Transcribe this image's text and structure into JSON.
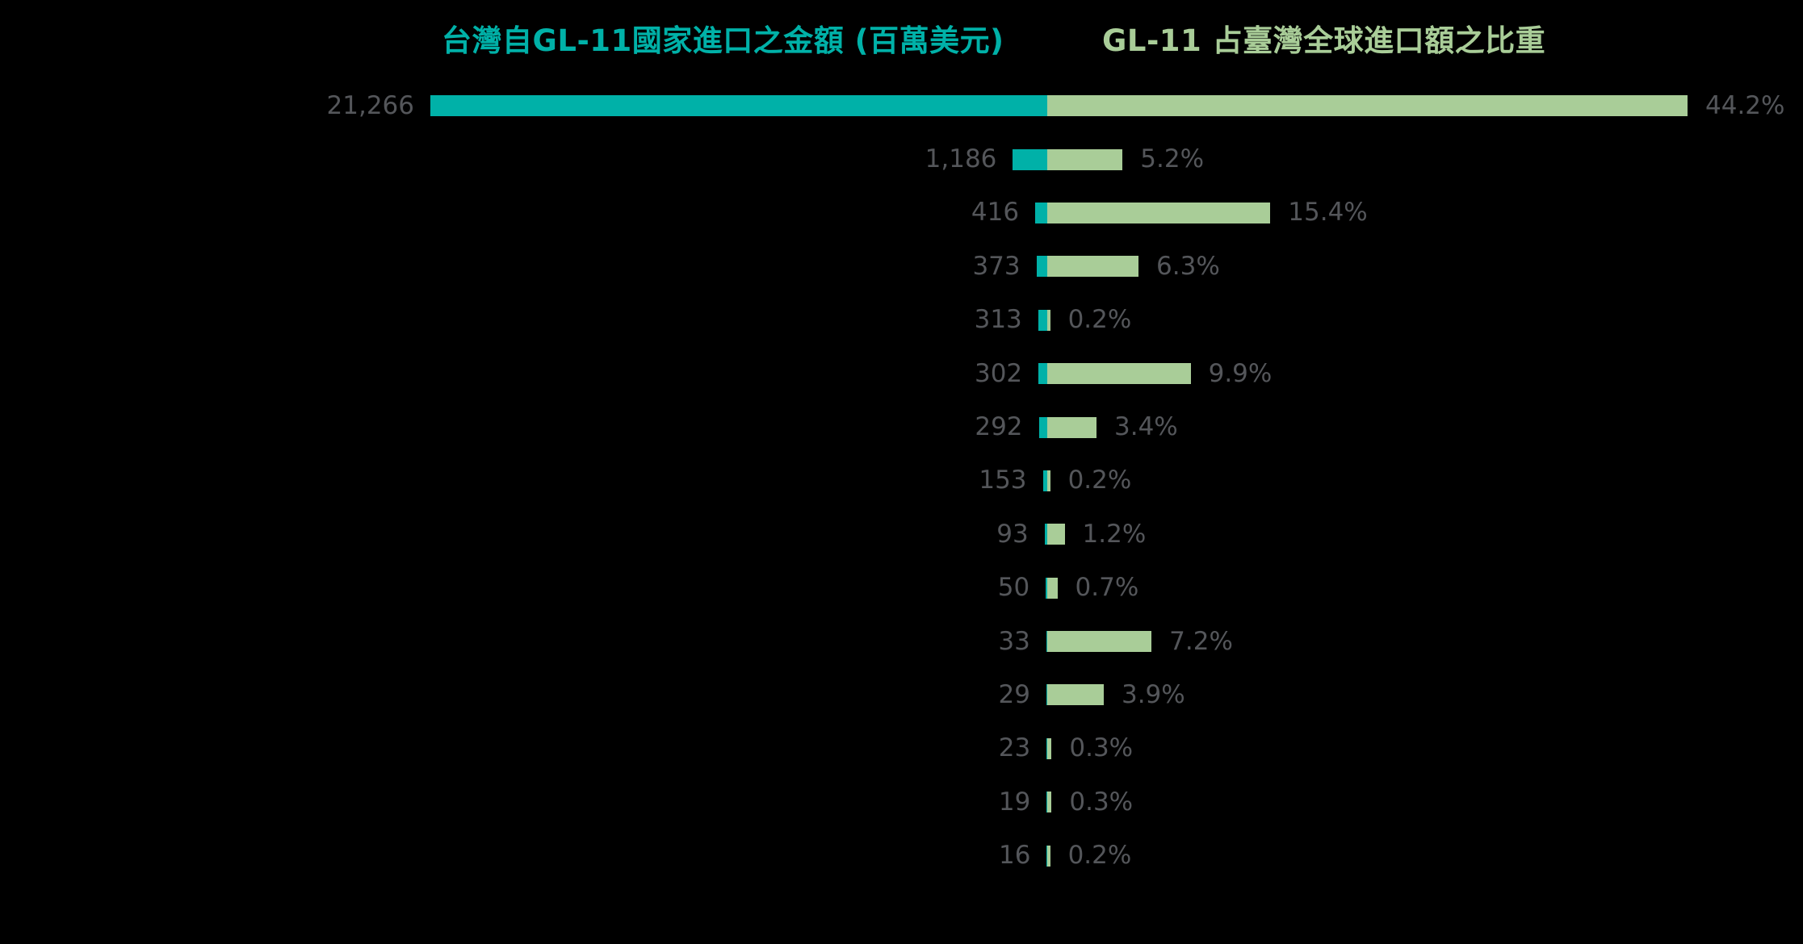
{
  "titles": {
    "left": "台灣自GL-11國家進口之金額 (百萬美元)",
    "right": "GL-11 占臺灣全球進口額之比重"
  },
  "colors": {
    "teal": "#00b1a8",
    "green": "#a9cd98",
    "label_gray": "#54565a",
    "background": "#000000"
  },
  "chart_data": {
    "type": "bar",
    "orientation": "horizontal-diverging",
    "title_left": "台灣自GL-11國家進口之金額 (百萬美元)",
    "title_right": "GL-11 占臺灣全球進口額之比重",
    "legend_position": "top-titles",
    "grid": false,
    "axis_labels_visible": false,
    "series": [
      {
        "name": "台灣自GL-11國家進口之金額 (百萬美元)",
        "direction": "left",
        "color": "#00b1a8",
        "unit": "百萬美元",
        "values": [
          21266,
          1186,
          416,
          373,
          313,
          302,
          292,
          153,
          93,
          50,
          33,
          29,
          23,
          19,
          16
        ],
        "value_labels": [
          "21,266",
          "1,186",
          "416",
          "373",
          "313",
          "302",
          "292",
          "153",
          "93",
          "50",
          "33",
          "29",
          "23",
          "19",
          "16"
        ],
        "max_value": 21266
      },
      {
        "name": "GL-11 占臺灣全球進口額之比重",
        "direction": "right",
        "color": "#a9cd98",
        "unit": "%",
        "values": [
          44.2,
          5.2,
          15.4,
          6.3,
          0.2,
          9.9,
          3.4,
          0.2,
          1.2,
          0.7,
          7.2,
          3.9,
          0.3,
          0.3,
          0.2
        ],
        "value_labels": [
          "44.2%",
          "5.2%",
          "15.4%",
          "6.3%",
          "0.2%",
          "9.9%",
          "3.4%",
          "0.2%",
          "1.2%",
          "0.7%",
          "7.2%",
          "3.9%",
          "0.3%",
          "0.3%",
          "0.2%"
        ],
        "max_value": 44.2
      }
    ]
  }
}
